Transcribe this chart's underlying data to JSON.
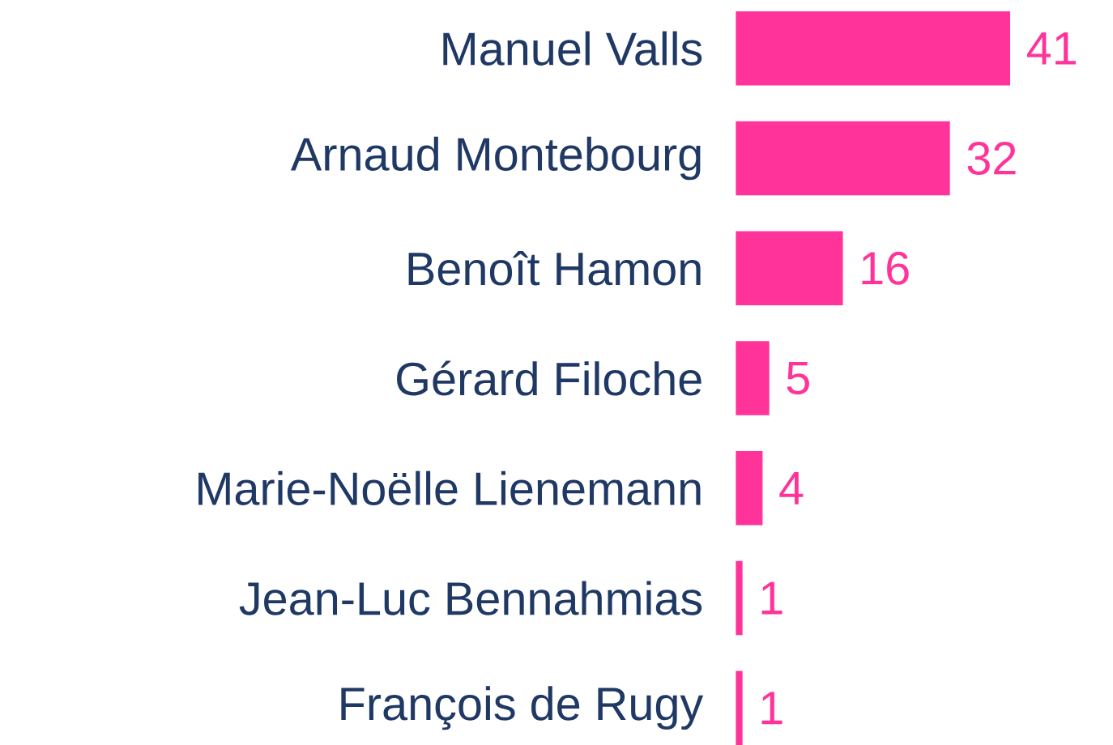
{
  "chart_data": {
    "type": "bar",
    "orientation": "horizontal",
    "categories": [
      "Manuel Valls",
      "Arnaud Montebourg",
      "Benoît Hamon",
      "Gérard Filoche",
      "Marie-Noëlle Lienemann",
      "Jean-Luc Bennahmias",
      "François de Rugy"
    ],
    "values": [
      41,
      32,
      16,
      5,
      4,
      1,
      1
    ],
    "color": "#ff3399",
    "data_labels": true
  }
}
